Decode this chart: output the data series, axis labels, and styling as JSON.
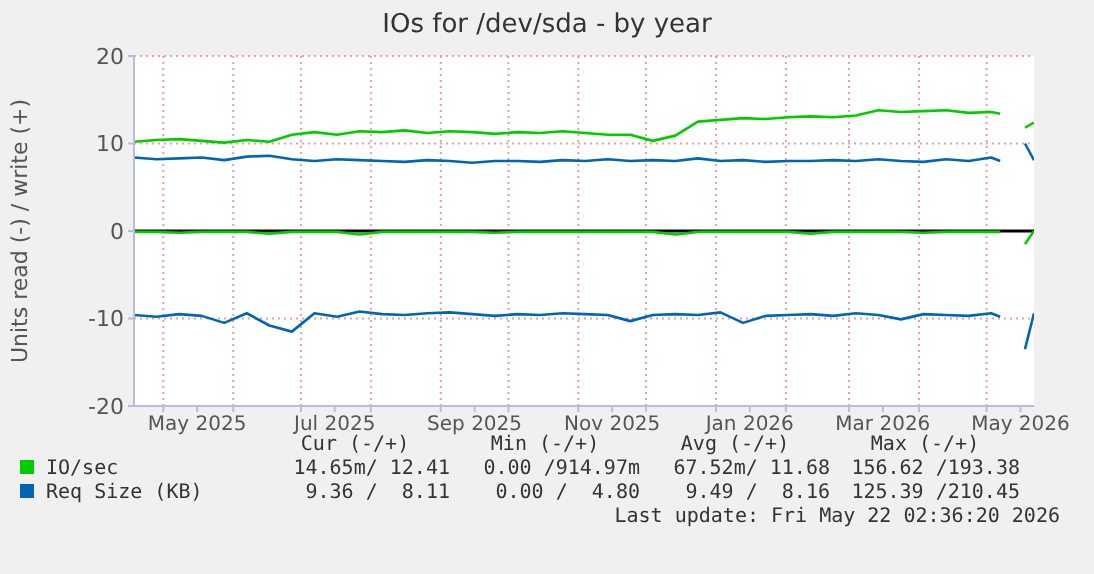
{
  "chart_data": {
    "type": "line",
    "title": "IOs for /dev/sda - by year",
    "ylabel": "Units read (-) / write (+)",
    "x": [
      "2025-04-18",
      "2025-04-28",
      "2025-05-08",
      "2025-05-18",
      "2025-05-28",
      "2025-06-07",
      "2025-06-17",
      "2025-06-27",
      "2025-07-07",
      "2025-07-17",
      "2025-07-27",
      "2025-08-06",
      "2025-08-16",
      "2025-08-26",
      "2025-09-05",
      "2025-09-15",
      "2025-09-25",
      "2025-10-05",
      "2025-10-15",
      "2025-10-25",
      "2025-11-04",
      "2025-11-14",
      "2025-11-24",
      "2025-12-04",
      "2025-12-14",
      "2025-12-24",
      "2026-01-03",
      "2026-01-13",
      "2026-01-23",
      "2026-02-02",
      "2026-02-12",
      "2026-02-22",
      "2026-03-04",
      "2026-03-14",
      "2026-03-24",
      "2026-04-03",
      "2026-04-13",
      "2026-04-23",
      "2026-05-03",
      "2026-05-07",
      "2026-05-12",
      "2026-05-18",
      "2026-05-22"
    ],
    "series": [
      {
        "name": "IO/sec",
        "color": "#00cc00",
        "values": [
          10.2,
          10.4,
          10.5,
          10.3,
          10.1,
          10.4,
          10.2,
          11.0,
          11.3,
          11.0,
          11.4,
          11.3,
          11.5,
          11.2,
          11.4,
          11.3,
          11.1,
          11.3,
          11.2,
          11.4,
          11.2,
          11.0,
          11.0,
          10.3,
          10.9,
          12.5,
          12.7,
          12.9,
          12.8,
          13.0,
          13.1,
          13.0,
          13.2,
          13.8,
          13.6,
          13.7,
          13.8,
          13.5,
          13.6,
          13.4,
          null,
          11.8,
          12.4
        ]
      },
      {
        "color": "#00cc00",
        "values": [
          -0.1,
          -0.1,
          -0.2,
          -0.1,
          -0.1,
          -0.1,
          -0.3,
          -0.1,
          -0.1,
          -0.1,
          -0.4,
          -0.1,
          -0.1,
          -0.1,
          -0.1,
          -0.1,
          -0.2,
          -0.1,
          -0.1,
          -0.1,
          -0.1,
          -0.1,
          -0.1,
          -0.1,
          -0.4,
          -0.1,
          -0.1,
          -0.1,
          -0.1,
          -0.1,
          -0.3,
          -0.1,
          -0.1,
          -0.1,
          -0.1,
          -0.2,
          -0.1,
          -0.1,
          -0.1,
          -0.1,
          null,
          -1.5,
          0
        ]
      },
      {
        "name": "Req Size (KB)",
        "color": "#0066b3",
        "values": [
          8.4,
          8.2,
          8.3,
          8.4,
          8.1,
          8.5,
          8.6,
          8.2,
          8.0,
          8.2,
          8.1,
          8.0,
          7.9,
          8.1,
          8.0,
          7.8,
          8.0,
          8.0,
          7.9,
          8.1,
          8.0,
          8.2,
          8.0,
          8.1,
          8.0,
          8.3,
          8.0,
          8.1,
          7.9,
          8.0,
          8.0,
          8.1,
          8.0,
          8.2,
          8.0,
          7.9,
          8.2,
          8.0,
          8.4,
          8.0,
          null,
          10.0,
          8.1
        ]
      },
      {
        "color": "#0066b3",
        "values": [
          -9.6,
          -9.8,
          -9.5,
          -9.7,
          -10.5,
          -9.4,
          -10.8,
          -11.5,
          -9.4,
          -9.8,
          -9.2,
          -9.5,
          -9.6,
          -9.4,
          -9.3,
          -9.5,
          -9.7,
          -9.5,
          -9.6,
          -9.4,
          -9.5,
          -9.6,
          -10.3,
          -9.6,
          -9.5,
          -9.6,
          -9.3,
          -10.5,
          -9.7,
          -9.6,
          -9.5,
          -9.7,
          -9.4,
          -9.6,
          -10.1,
          -9.5,
          -9.6,
          -9.7,
          -9.4,
          -9.8,
          null,
          -13.5,
          -9.4
        ]
      }
    ],
    "xlim": [
      "2025-04-18",
      "2026-05-22"
    ],
    "xticks": [
      {
        "value": "2025-05-01",
        "label": null
      },
      {
        "value": "2025-05-16",
        "label": "May 2025"
      },
      {
        "value": "2025-06-01",
        "label": null
      },
      {
        "value": "2025-07-01",
        "label": null
      },
      {
        "value": "2025-07-16",
        "label": "Jul 2025"
      },
      {
        "value": "2025-08-01",
        "label": null
      },
      {
        "value": "2025-09-01",
        "label": null
      },
      {
        "value": "2025-09-16",
        "label": "Sep 2025"
      },
      {
        "value": "2025-10-01",
        "label": null
      },
      {
        "value": "2025-11-01",
        "label": null
      },
      {
        "value": "2025-11-16",
        "label": "Nov 2025"
      },
      {
        "value": "2025-12-01",
        "label": null
      },
      {
        "value": "2026-01-01",
        "label": null
      },
      {
        "value": "2026-01-16",
        "label": "Jan 2026"
      },
      {
        "value": "2026-02-01",
        "label": null
      },
      {
        "value": "2026-03-01",
        "label": null
      },
      {
        "value": "2026-03-16",
        "label": "Mar 2026"
      },
      {
        "value": "2026-04-01",
        "label": null
      },
      {
        "value": "2026-05-01",
        "label": null
      },
      {
        "value": "2026-05-16",
        "label": "May 2026"
      }
    ],
    "ylim": [
      -20,
      20
    ],
    "yticks": [
      -20,
      -10,
      0,
      10,
      20
    ],
    "grid": true,
    "legend": "bottom",
    "marker": "none",
    "line_style": "solid",
    "ref_lines": [
      {
        "axis": "y",
        "value": 0,
        "color": "#000000"
      }
    ],
    "annotations": [
      "Cur (-/+)",
      "Min (-/+)",
      "Avg (-/+)",
      "Max (-/+)",
      "14.65m/ 12.41",
      "0.00 /914.97m",
      "67.52m/ 11.68",
      "156.62 /193.38",
      "9.36 /  8.11",
      "0.00 /  4.80",
      "9.49 /  8.16",
      "125.39 /210.45",
      "Last update: Fri May 22 02:36:20 2026"
    ]
  }
}
